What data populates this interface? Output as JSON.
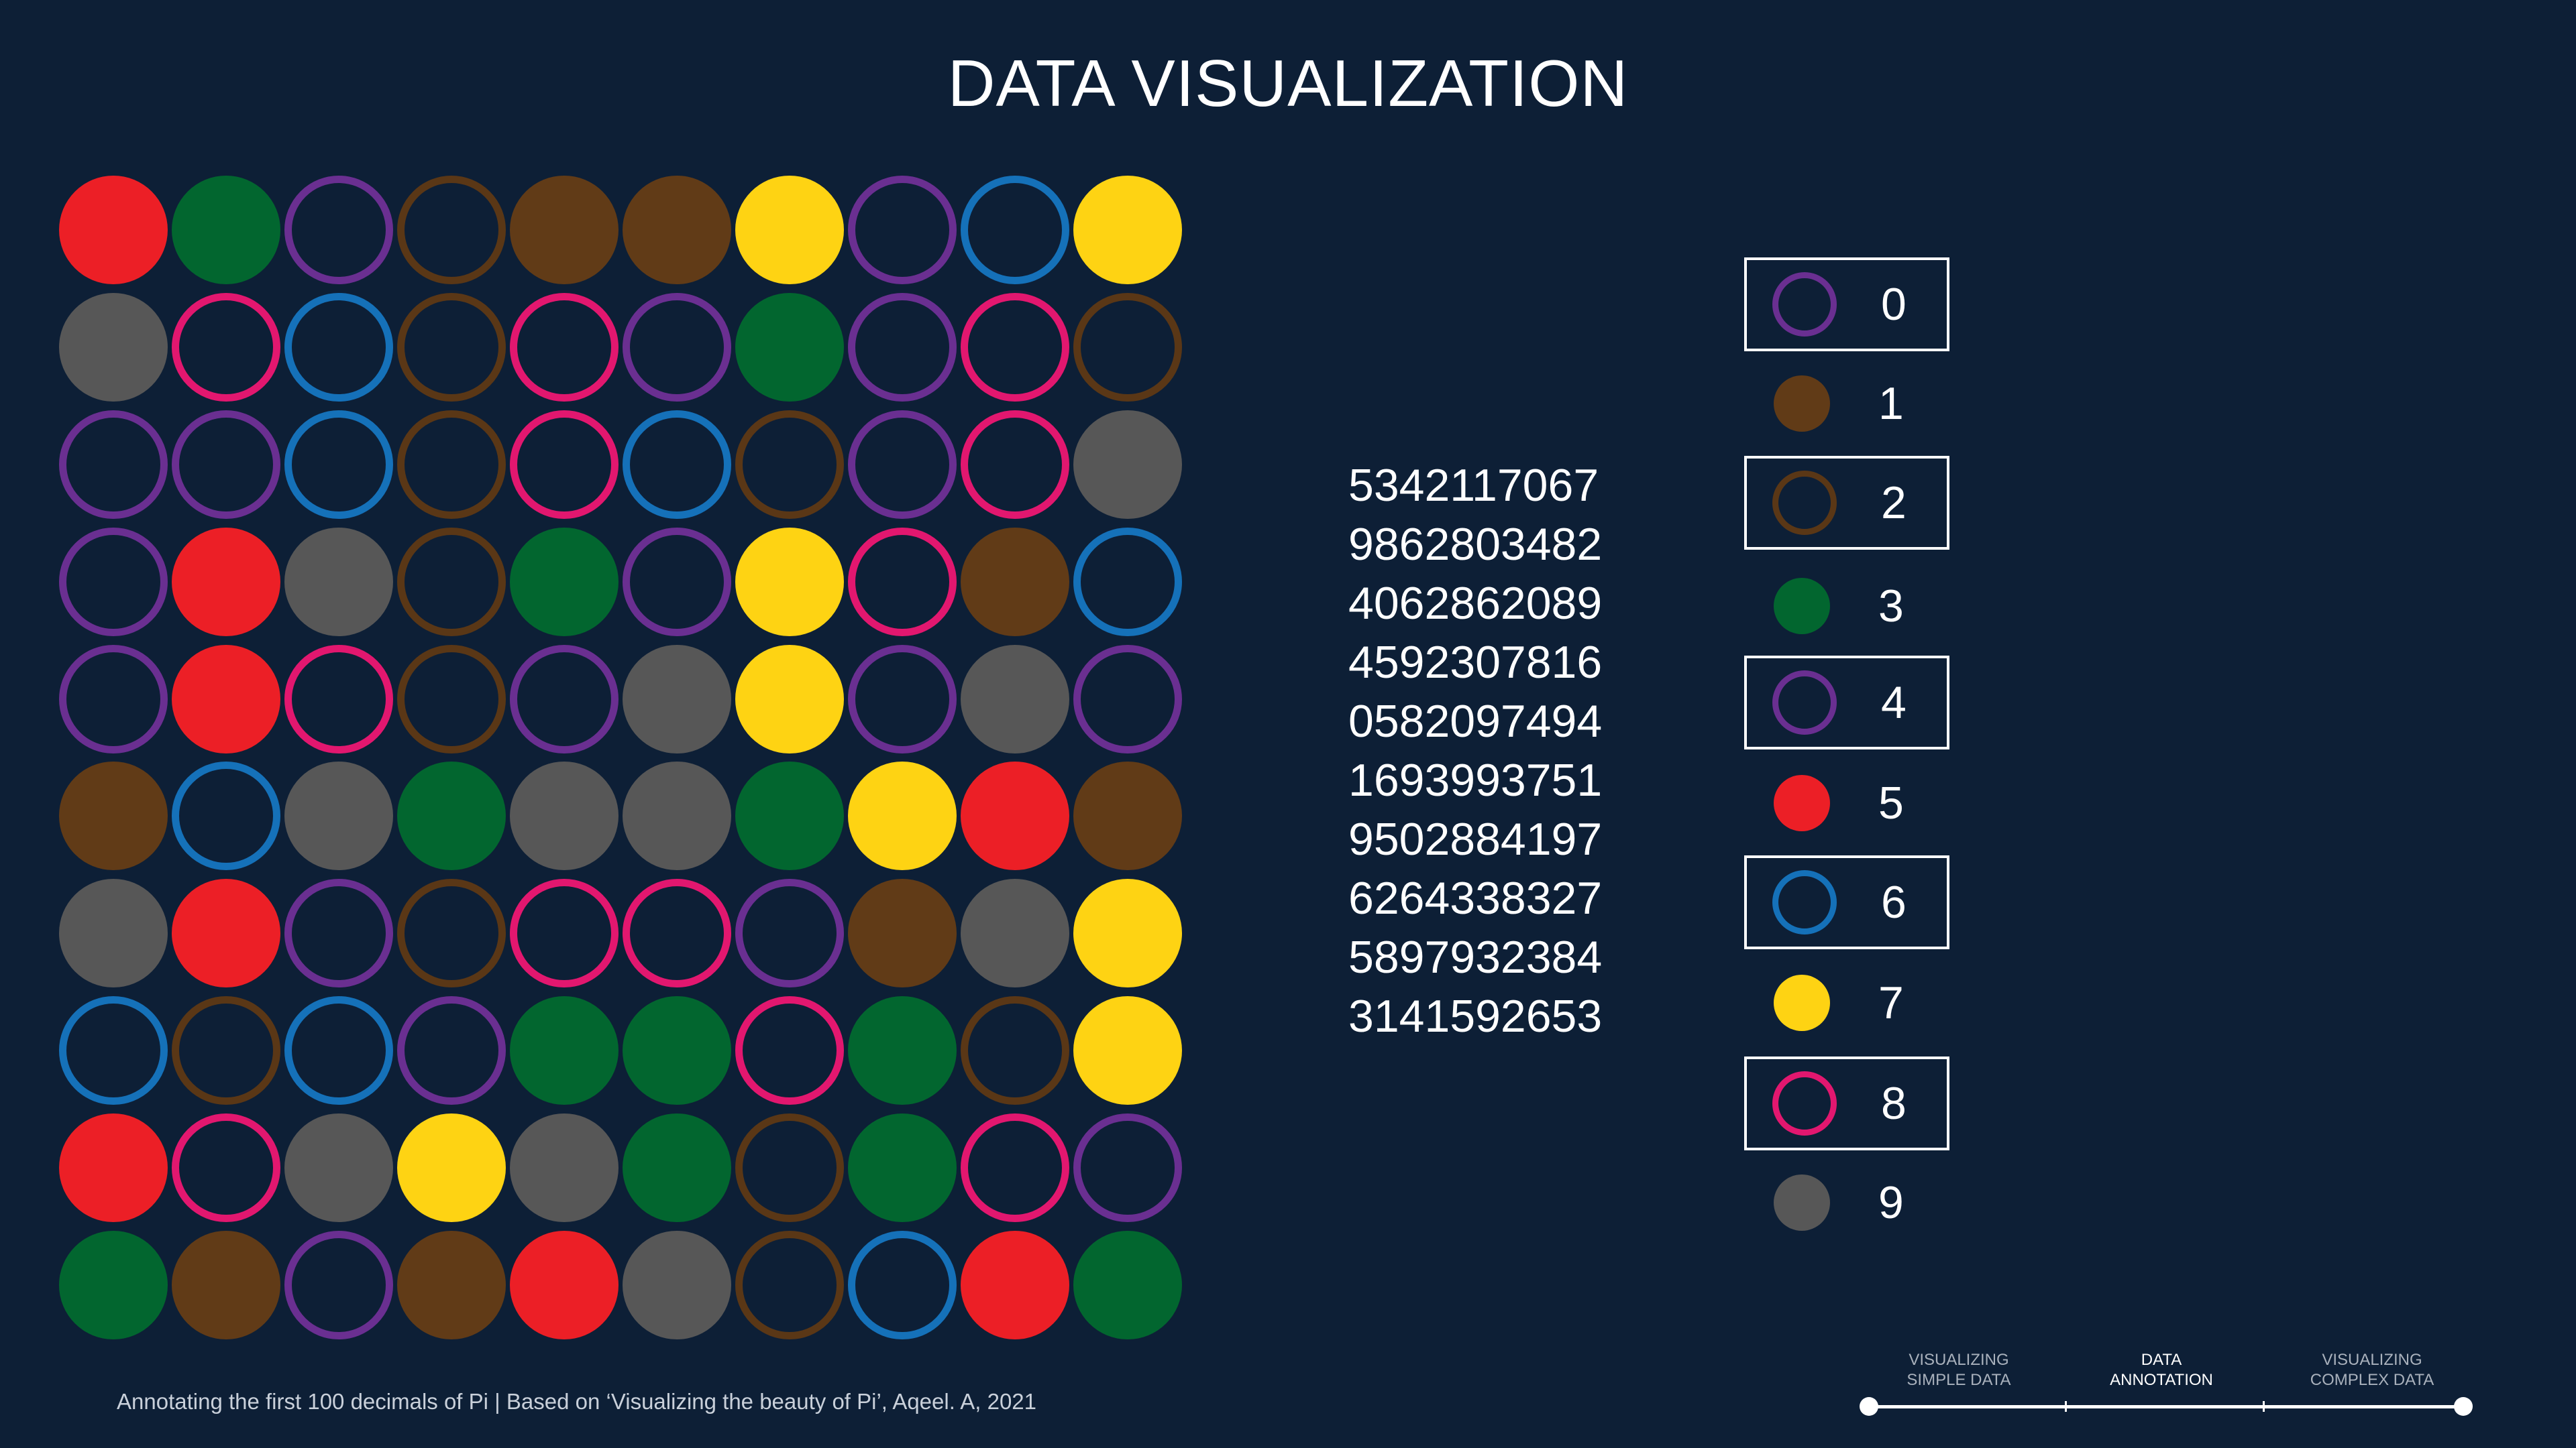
{
  "title": "DATA VISUALIZATION",
  "colors": {
    "0": {
      "hex": "#6a2f91",
      "filled": false
    },
    "1": {
      "hex": "#613b17",
      "filled": true
    },
    "2": {
      "hex": "#5a3716",
      "filled": false
    },
    "3": {
      "hex": "#02662f",
      "filled": true
    },
    "4": {
      "hex": "#6a2f91",
      "filled": false
    },
    "5": {
      "hex": "#ec1f26",
      "filled": true
    },
    "6": {
      "hex": "#1571b9",
      "filled": false
    },
    "7": {
      "hex": "#fed313",
      "filled": true
    },
    "8": {
      "hex": "#e2176f",
      "filled": false
    },
    "9": {
      "hex": "#575757",
      "filled": true
    }
  },
  "grid_digits": [
    "5342117067",
    "9862803482",
    "4062862089",
    "4592307816",
    "0582097494",
    "1693993751",
    "9502884197",
    "6264338327",
    "5897932384",
    "3141592653"
  ],
  "digit_rows": [
    "5342117067",
    "9862803482",
    "4062862089",
    "4592307816",
    "0582097494",
    "1693993751",
    "9502884197",
    "6264338327",
    "5897932384",
    "3141592653"
  ],
  "legend": [
    {
      "label": "0",
      "boxed": true
    },
    {
      "label": "1",
      "boxed": false
    },
    {
      "label": "2",
      "boxed": true
    },
    {
      "label": "3",
      "boxed": false
    },
    {
      "label": "4",
      "boxed": true
    },
    {
      "label": "5",
      "boxed": false
    },
    {
      "label": "6",
      "boxed": true
    },
    {
      "label": "7",
      "boxed": false
    },
    {
      "label": "8",
      "boxed": true
    },
    {
      "label": "9",
      "boxed": false
    }
  ],
  "footer": "Annotating the first 100 decimals of Pi | Based on ‘Visualizing the beauty of Pi’, Aqeel. A, 2021",
  "timeline": {
    "steps": [
      {
        "line1": "VISUALIZING",
        "line2": "SIMPLE DATA",
        "active": false
      },
      {
        "line1": "DATA",
        "line2": "ANNOTATION",
        "active": true
      },
      {
        "line1": "VISUALIZING",
        "line2": "COMPLEX DATA",
        "active": false
      }
    ]
  }
}
